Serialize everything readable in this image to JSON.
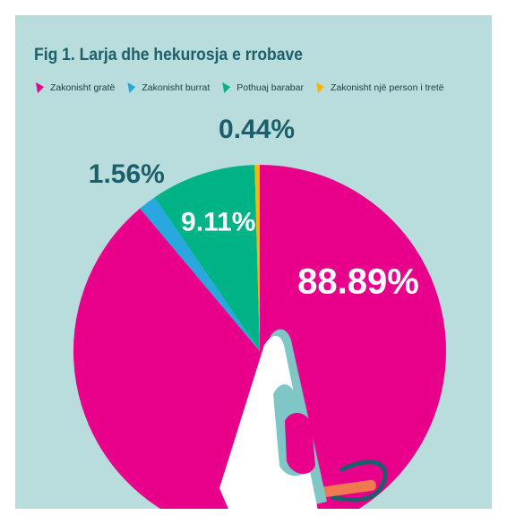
{
  "chart_data": {
    "type": "pie",
    "title": "Fig 1. Larja dhe hekurosja e rrobave",
    "categories": [
      "Zakonisht gratë",
      "Zakonisht burrat",
      "Pothuaj barabar",
      "Zakonisht një person i tretë"
    ],
    "values": [
      88.89,
      1.56,
      9.11,
      0.44
    ],
    "value_labels": [
      "88.89%",
      "1.56%",
      "9.11%",
      "0.44%"
    ],
    "colors": [
      "#e8008a",
      "#29a8e0",
      "#00b386",
      "#f5b800"
    ]
  }
}
